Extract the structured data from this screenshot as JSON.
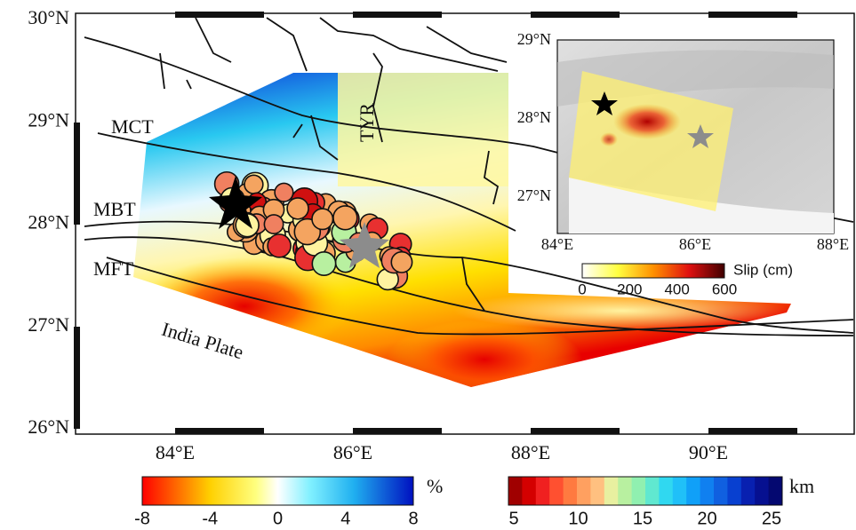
{
  "main_map": {
    "lat_ticks": [
      "30°N",
      "29°N",
      "28°N",
      "27°N",
      "26°N"
    ],
    "lon_ticks": [
      "84°E",
      "86°E",
      "88°E",
      "90°E"
    ],
    "labels": {
      "mct": "MCT",
      "mbt": "MBT",
      "mft": "MFT",
      "tyr": "TYR",
      "india_plate": "India Plate"
    }
  },
  "inset": {
    "lat_ticks": [
      "29°N",
      "28°N",
      "27°N"
    ],
    "lon_ticks": [
      "84°E",
      "86°E",
      "88°E"
    ],
    "colorbar": {
      "ticks": [
        "0",
        "200",
        "400",
        "600"
      ],
      "label": "Slip (cm)"
    }
  },
  "colorbar_deformation": {
    "ticks": [
      "-8",
      "-4",
      "0",
      "4",
      "8"
    ],
    "unit": "%"
  },
  "colorbar_depth": {
    "ticks": [
      "5",
      "10",
      "15",
      "20",
      "25"
    ],
    "unit": "km"
  }
}
